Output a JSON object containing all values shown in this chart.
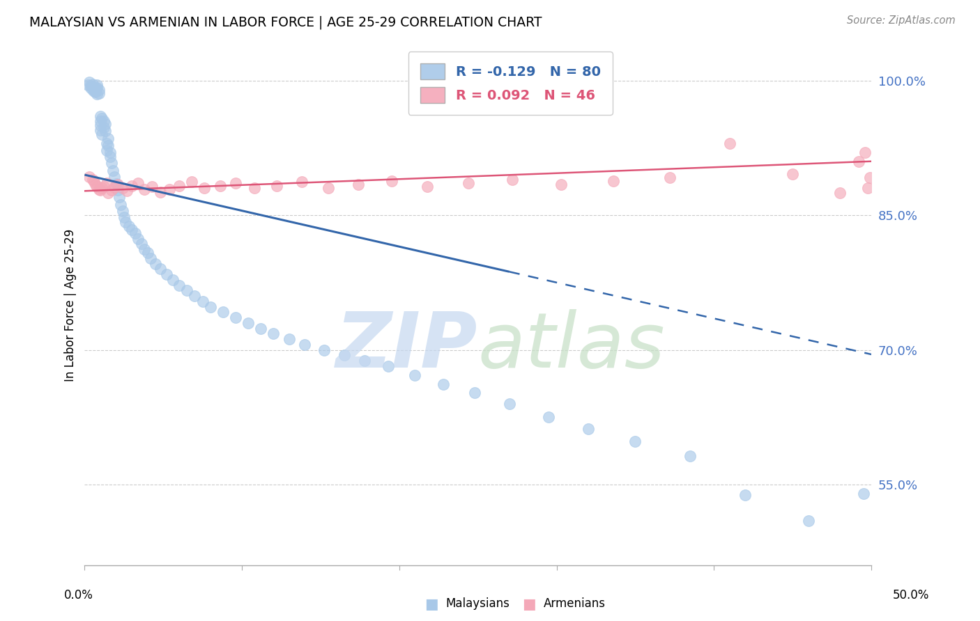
{
  "title": "MALAYSIAN VS ARMENIAN IN LABOR FORCE | AGE 25-29 CORRELATION CHART",
  "source": "Source: ZipAtlas.com",
  "ylabel": "In Labor Force | Age 25-29",
  "xlim": [
    0.0,
    0.5
  ],
  "ylim": [
    0.46,
    1.04
  ],
  "ytick_vals": [
    0.55,
    0.7,
    0.85,
    1.0
  ],
  "ytick_labels": [
    "55.0%",
    "70.0%",
    "85.0%",
    "100.0%"
  ],
  "malaysian_R": -0.129,
  "malaysian_N": 80,
  "armenian_R": 0.092,
  "armenian_N": 46,
  "blue_color": "#a8c8e8",
  "pink_color": "#f4a8b8",
  "blue_line_color": "#3366aa",
  "pink_line_color": "#dd5577",
  "blue_line_solid_end": 0.27,
  "mal_line_x0": 0.0,
  "mal_line_y0": 0.895,
  "mal_line_x1": 0.5,
  "mal_line_y1": 0.695,
  "arm_line_x0": 0.0,
  "arm_line_y0": 0.877,
  "arm_line_x1": 0.5,
  "arm_line_y1": 0.91,
  "malaysians_x": [
    0.002,
    0.003,
    0.004,
    0.004,
    0.005,
    0.005,
    0.006,
    0.006,
    0.007,
    0.007,
    0.008,
    0.008,
    0.008,
    0.009,
    0.009,
    0.01,
    0.01,
    0.01,
    0.01,
    0.011,
    0.011,
    0.012,
    0.012,
    0.013,
    0.013,
    0.014,
    0.014,
    0.015,
    0.015,
    0.016,
    0.016,
    0.017,
    0.018,
    0.019,
    0.02,
    0.021,
    0.022,
    0.023,
    0.024,
    0.025,
    0.026,
    0.028,
    0.03,
    0.032,
    0.034,
    0.036,
    0.038,
    0.04,
    0.042,
    0.045,
    0.048,
    0.052,
    0.056,
    0.06,
    0.065,
    0.07,
    0.075,
    0.08,
    0.088,
    0.096,
    0.104,
    0.112,
    0.12,
    0.13,
    0.14,
    0.152,
    0.165,
    0.178,
    0.193,
    0.21,
    0.228,
    0.248,
    0.27,
    0.295,
    0.32,
    0.35,
    0.385,
    0.42,
    0.46,
    0.495
  ],
  "malaysians_y": [
    0.995,
    0.998,
    0.994,
    0.992,
    0.996,
    0.99,
    0.993,
    0.988,
    0.991,
    0.987,
    0.995,
    0.992,
    0.985,
    0.99,
    0.986,
    0.96,
    0.955,
    0.95,
    0.945,
    0.958,
    0.94,
    0.955,
    0.948,
    0.952,
    0.944,
    0.93,
    0.922,
    0.935,
    0.928,
    0.92,
    0.915,
    0.908,
    0.9,
    0.893,
    0.885,
    0.878,
    0.87,
    0.862,
    0.855,
    0.848,
    0.842,
    0.838,
    0.834,
    0.83,
    0.824,
    0.818,
    0.812,
    0.808,
    0.802,
    0.796,
    0.79,
    0.784,
    0.778,
    0.772,
    0.766,
    0.76,
    0.754,
    0.748,
    0.742,
    0.736,
    0.73,
    0.724,
    0.718,
    0.712,
    0.706,
    0.7,
    0.694,
    0.688,
    0.682,
    0.672,
    0.662,
    0.652,
    0.64,
    0.625,
    0.612,
    0.598,
    0.582,
    0.538,
    0.51,
    0.54
  ],
  "armenians_x": [
    0.003,
    0.005,
    0.006,
    0.007,
    0.008,
    0.009,
    0.01,
    0.011,
    0.012,
    0.014,
    0.015,
    0.017,
    0.019,
    0.021,
    0.024,
    0.027,
    0.03,
    0.034,
    0.038,
    0.043,
    0.048,
    0.054,
    0.06,
    0.068,
    0.076,
    0.086,
    0.096,
    0.108,
    0.122,
    0.138,
    0.155,
    0.174,
    0.195,
    0.218,
    0.244,
    0.272,
    0.303,
    0.336,
    0.372,
    0.41,
    0.45,
    0.48,
    0.492,
    0.496,
    0.498,
    0.499
  ],
  "armenians_y": [
    0.893,
    0.89,
    0.887,
    0.884,
    0.882,
    0.879,
    0.878,
    0.88,
    0.882,
    0.886,
    0.875,
    0.878,
    0.881,
    0.884,
    0.88,
    0.877,
    0.883,
    0.886,
    0.879,
    0.882,
    0.876,
    0.879,
    0.883,
    0.887,
    0.88,
    0.883,
    0.886,
    0.88,
    0.883,
    0.887,
    0.88,
    0.884,
    0.888,
    0.882,
    0.886,
    0.89,
    0.884,
    0.888,
    0.892,
    0.93,
    0.896,
    0.875,
    0.91,
    0.92,
    0.88,
    0.892
  ]
}
